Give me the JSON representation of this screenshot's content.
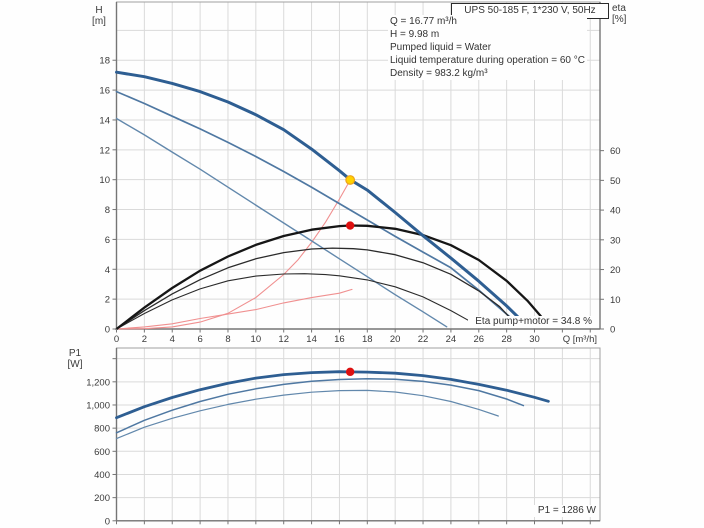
{
  "window": {
    "title_box": "UPS 50-185 F, 1*230 V, 50Hz"
  },
  "info_panel": {
    "lines": [
      "Q = 16.77 m³/h",
      "H = 9.98 m",
      "Pumped liquid = Water",
      "Liquid temperature during operation = 60 °C",
      "Density = 983.2 kg/m³"
    ]
  },
  "colors": {
    "pump_blue_thick": "#2e5e92",
    "pump_blue_medium": "#4f78a2",
    "pump_blue_thin": "#6288ac",
    "eta_black_thick": "#161616",
    "eta_black_medium": "#2b2b2b",
    "system_pink": "#f09090",
    "duty_yellow": "#ffd200",
    "duty_yellow_edge": "#eda21a",
    "marker_red": "#dd1111",
    "grid": "#dadada",
    "border": "#a0a0a0",
    "axis": "#757575",
    "tick_text": "#3a3a3a"
  },
  "chart_data": [
    {
      "name": "qh-eta-chart",
      "type": "line",
      "xlabel": "Q [m³/h]",
      "ylabel_left": [
        "H",
        "[m]"
      ],
      "ylabel_right": [
        "eta",
        "[%]"
      ],
      "xlim": [
        0,
        34.7
      ],
      "ylim_left": [
        0,
        21.9
      ],
      "ylim_right": [
        0,
        110
      ],
      "x_grid_step": 2,
      "x_grid_max": 34,
      "y_grid_step": 2,
      "y_grid_max": 20,
      "x_ticks": [
        [
          0,
          "0"
        ],
        [
          2,
          "2"
        ],
        [
          4,
          "4"
        ],
        [
          6,
          "6"
        ],
        [
          8,
          "8"
        ],
        [
          10,
          "10"
        ],
        [
          12,
          "12"
        ],
        [
          14,
          "14"
        ],
        [
          16,
          "16"
        ],
        [
          18,
          "18"
        ],
        [
          20,
          "20"
        ],
        [
          22,
          "22"
        ],
        [
          24,
          "24"
        ],
        [
          26,
          "26"
        ],
        [
          28,
          "28"
        ],
        [
          30,
          "30"
        ]
      ],
      "y_ticks_left": [
        [
          0,
          "0"
        ],
        [
          2,
          "2"
        ],
        [
          4,
          "4"
        ],
        [
          6,
          "6"
        ],
        [
          8,
          "8"
        ],
        [
          10,
          "10"
        ],
        [
          12,
          "12"
        ],
        [
          14,
          "14"
        ],
        [
          16,
          "16"
        ],
        [
          18,
          "18"
        ]
      ],
      "y_ticks_right": [
        [
          0,
          "0"
        ],
        [
          10,
          "10"
        ],
        [
          20,
          "20"
        ],
        [
          30,
          "30"
        ],
        [
          40,
          "40"
        ],
        [
          50,
          "50"
        ],
        [
          60,
          "60"
        ]
      ],
      "annotation": "Eta pump+motor = 34.8 %",
      "series": [
        {
          "name": "system-curve",
          "axis": "left",
          "color": "#f09090",
          "width": 1.1,
          "points": [
            [
              0,
              0
            ],
            [
              2,
              0.02
            ],
            [
              4,
              0.14
            ],
            [
              6,
              0.46
            ],
            [
              8,
              1.05
            ],
            [
              10,
              2.1
            ],
            [
              12,
              3.65
            ],
            [
              13,
              4.6
            ],
            [
              14,
              5.8
            ],
            [
              15,
              7.15
            ],
            [
              16,
              8.7
            ],
            [
              16.77,
              9.98
            ]
          ]
        },
        {
          "name": "system-curve-low",
          "axis": "left",
          "color": "#f09090",
          "width": 1.1,
          "points": [
            [
              0,
              0
            ],
            [
              2,
              0.14
            ],
            [
              4,
              0.35
            ],
            [
              6,
              0.7
            ],
            [
              8,
              1.0
            ],
            [
              10,
              1.3
            ],
            [
              12,
              1.75
            ],
            [
              14,
              2.1
            ],
            [
              16,
              2.4
            ],
            [
              16.9,
              2.65
            ]
          ]
        },
        {
          "name": "pump-curve-speed1",
          "axis": "left",
          "color": "#6288ac",
          "width": 1.4,
          "points": [
            [
              0,
              14.1
            ],
            [
              2,
              13.0
            ],
            [
              4,
              11.85
            ],
            [
              6,
              10.7
            ],
            [
              8,
              9.5
            ],
            [
              10,
              8.3
            ],
            [
              12,
              7.1
            ],
            [
              14,
              5.9
            ],
            [
              16,
              4.7
            ],
            [
              18,
              3.5
            ],
            [
              20,
              2.3
            ],
            [
              22,
              1.15
            ],
            [
              23.7,
              0.15
            ]
          ]
        },
        {
          "name": "pump-curve-speed2",
          "axis": "left",
          "color": "#4f78a2",
          "width": 1.7,
          "points": [
            [
              0,
              15.9
            ],
            [
              2,
              15.1
            ],
            [
              4,
              14.25
            ],
            [
              6,
              13.4
            ],
            [
              8,
              12.5
            ],
            [
              10,
              11.55
            ],
            [
              12,
              10.55
            ],
            [
              14,
              9.5
            ],
            [
              16,
              8.4
            ],
            [
              18,
              7.3
            ],
            [
              20,
              6.2
            ],
            [
              22,
              5.15
            ],
            [
              24,
              4.1
            ],
            [
              26,
              2.6
            ],
            [
              28,
              1.0
            ],
            [
              29,
              0.2
            ]
          ]
        },
        {
          "name": "eta-curve-speed1",
          "axis": "right",
          "color": "#2b2b2b",
          "width": 1.1,
          "points": [
            [
              0,
              0
            ],
            [
              2,
              5.2
            ],
            [
              4,
              9.8
            ],
            [
              6,
              13.5
            ],
            [
              8,
              16.2
            ],
            [
              10,
              17.8
            ],
            [
              12,
              18.5
            ],
            [
              13.5,
              18.6
            ],
            [
              15,
              18.3
            ],
            [
              16,
              17.9
            ],
            [
              18,
              16.5
            ],
            [
              20,
              14.2
            ],
            [
              22,
              10.8
            ],
            [
              24,
              6.2
            ],
            [
              25.3,
              2.8
            ]
          ]
        },
        {
          "name": "eta-curve-speed2",
          "axis": "right",
          "color": "#2b2b2b",
          "width": 1.3,
          "points": [
            [
              0,
              0
            ],
            [
              2,
              6.2
            ],
            [
              4,
              11.8
            ],
            [
              6,
              16.6
            ],
            [
              8,
              20.6
            ],
            [
              10,
              23.6
            ],
            [
              12,
              25.7
            ],
            [
              14,
              26.9
            ],
            [
              15.5,
              27.2
            ],
            [
              17,
              27.0
            ],
            [
              18,
              26.6
            ],
            [
              20,
              25.0
            ],
            [
              22,
              22.3
            ],
            [
              24,
              18.4
            ],
            [
              26,
              12.8
            ],
            [
              27.5,
              7.5
            ],
            [
              28.3,
              3.5
            ]
          ]
        },
        {
          "name": "eta-curve-speed3",
          "axis": "right",
          "color": "#161616",
          "width": 2.3,
          "points": [
            [
              0,
              0
            ],
            [
              1,
              3.6
            ],
            [
              2,
              7.2
            ],
            [
              4,
              13.8
            ],
            [
              6,
              19.6
            ],
            [
              8,
              24.4
            ],
            [
              10,
              28.3
            ],
            [
              12,
              31.3
            ],
            [
              14,
              33.4
            ],
            [
              16,
              34.6
            ],
            [
              16.77,
              34.8
            ],
            [
              18,
              34.7
            ],
            [
              20,
              33.7
            ],
            [
              22,
              31.6
            ],
            [
              24,
              28.2
            ],
            [
              26,
              23.2
            ],
            [
              28,
              16.2
            ],
            [
              29.5,
              9.5
            ],
            [
              30.6,
              3.5
            ]
          ]
        },
        {
          "name": "pump-curve-speed3",
          "axis": "left",
          "color": "#2e5e92",
          "width": 3,
          "points": [
            [
              0,
              17.2
            ],
            [
              2,
              16.9
            ],
            [
              4,
              16.45
            ],
            [
              6,
              15.9
            ],
            [
              8,
              15.2
            ],
            [
              10,
              14.35
            ],
            [
              12,
              13.35
            ],
            [
              14,
              12.05
            ],
            [
              16,
              10.6
            ],
            [
              16.77,
              10.0
            ],
            [
              18,
              9.3
            ],
            [
              20,
              7.8
            ],
            [
              22,
              6.25
            ],
            [
              24,
              4.75
            ],
            [
              26,
              3.2
            ],
            [
              28,
              1.55
            ],
            [
              29.2,
              0.45
            ]
          ]
        }
      ],
      "markers": [
        {
          "name": "duty-point-qh",
          "axis": "left",
          "x": 16.77,
          "y": 9.98,
          "fill": "#ffd200",
          "stroke": "#eda21a",
          "r": 4.3
        },
        {
          "name": "duty-point-eta",
          "axis": "right",
          "x": 16.77,
          "y": 34.8,
          "fill": "#dd1111",
          "stroke": "#dd1111",
          "r": 3.6
        }
      ]
    },
    {
      "name": "p1-chart",
      "type": "line",
      "xlabel": "",
      "ylabel_left": [
        "P1",
        "[W]"
      ],
      "xlim": [
        0,
        34.7
      ],
      "ylim_left": [
        0,
        1492
      ],
      "x_grid_step": 2,
      "x_grid_max": 34,
      "y_grid_step": 200,
      "y_grid_max": 1400,
      "x_ticks": [],
      "y_ticks_left": [
        [
          0,
          "0"
        ],
        [
          200,
          "200"
        ],
        [
          400,
          "400"
        ],
        [
          600,
          "600"
        ],
        [
          800,
          "800"
        ],
        [
          1000,
          "1,000"
        ],
        [
          1200,
          "1,200"
        ],
        [
          1400,
          ""
        ]
      ],
      "y_ticks_right": [],
      "annotation": "P1 = 1286 W",
      "series": [
        {
          "name": "p1-curve-speed1",
          "axis": "left",
          "color": "#6288ac",
          "width": 1.2,
          "points": [
            [
              0,
              710
            ],
            [
              2,
              808
            ],
            [
              4,
              885
            ],
            [
              6,
              950
            ],
            [
              8,
              1005
            ],
            [
              10,
              1050
            ],
            [
              12,
              1085
            ],
            [
              14,
              1110
            ],
            [
              16,
              1124
            ],
            [
              18,
              1126
            ],
            [
              20,
              1112
            ],
            [
              22,
              1080
            ],
            [
              24,
              1030
            ],
            [
              26,
              962
            ],
            [
              27.4,
              905
            ]
          ]
        },
        {
          "name": "p1-curve-speed2",
          "axis": "left",
          "color": "#4f78a2",
          "width": 1.5,
          "points": [
            [
              0,
              760
            ],
            [
              2,
              868
            ],
            [
              4,
              955
            ],
            [
              6,
              1030
            ],
            [
              8,
              1092
            ],
            [
              10,
              1140
            ],
            [
              12,
              1178
            ],
            [
              14,
              1205
            ],
            [
              16,
              1220
            ],
            [
              18,
              1227
            ],
            [
              20,
              1222
            ],
            [
              22,
              1204
            ],
            [
              24,
              1172
            ],
            [
              26,
              1124
            ],
            [
              28,
              1052
            ],
            [
              29.2,
              995
            ]
          ]
        },
        {
          "name": "p1-curve-speed3",
          "axis": "left",
          "color": "#2e5e92",
          "width": 2.8,
          "points": [
            [
              0,
              890
            ],
            [
              2,
              985
            ],
            [
              4,
              1065
            ],
            [
              6,
              1132
            ],
            [
              8,
              1188
            ],
            [
              10,
              1232
            ],
            [
              12,
              1262
            ],
            [
              14,
              1280
            ],
            [
              16,
              1287
            ],
            [
              16.77,
              1286
            ],
            [
              18,
              1284
            ],
            [
              20,
              1274
            ],
            [
              22,
              1254
            ],
            [
              24,
              1221
            ],
            [
              26,
              1178
            ],
            [
              28,
              1128
            ],
            [
              30,
              1066
            ],
            [
              31,
              1032
            ]
          ]
        }
      ],
      "markers": [
        {
          "name": "duty-point-p1",
          "axis": "left",
          "x": 16.77,
          "y": 1286,
          "fill": "#dd1111",
          "stroke": "#dd1111",
          "r": 3.6
        }
      ]
    }
  ]
}
